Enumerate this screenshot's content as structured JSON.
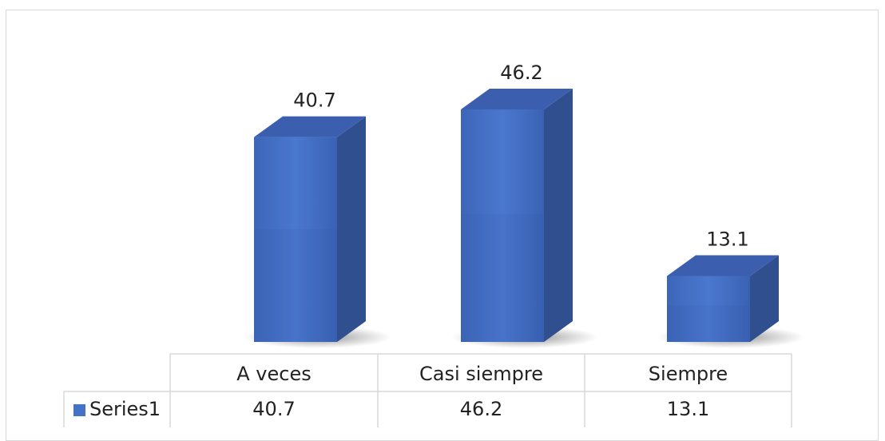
{
  "chart_data": {
    "type": "bar",
    "style": "3d-column-with-data-table",
    "categories": [
      "A veces",
      "Casi siempre",
      "Siempre"
    ],
    "series": [
      {
        "name": "Series1",
        "values": [
          40.7,
          46.2,
          13.1
        ],
        "color": "#4472c4"
      }
    ],
    "data_labels": [
      "40.7",
      "46.2",
      "13.1"
    ],
    "table": {
      "row_header": "Series1",
      "cells": [
        "40.7",
        "46.2",
        "13.1"
      ]
    },
    "ylim": [
      0,
      50
    ],
    "grid": false,
    "legend": "data-table-left"
  },
  "colors": {
    "bar_front": "#4472c4",
    "bar_side": "#2f4f8f",
    "bar_top": "#3b5fae",
    "border": "#d9d9d9"
  }
}
